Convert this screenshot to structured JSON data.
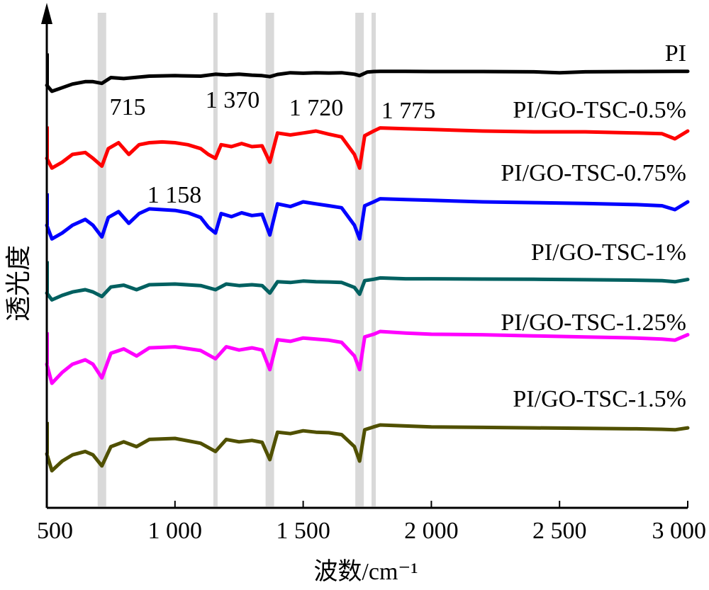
{
  "chart_data": {
    "type": "line",
    "title": "",
    "xlabel": "波数/cm⁻¹",
    "ylabel": "透光度",
    "xlim": [
      500,
      3000
    ],
    "x_ticks": [
      500,
      1000,
      1500,
      2000,
      2500,
      3000
    ],
    "x_tick_labels": [
      "500",
      "1 000",
      "1 500",
      "2 000",
      "2 500",
      "3 000"
    ],
    "y_ticks": [],
    "grid": false,
    "legend": "none",
    "marker_bands": [
      {
        "x": 715,
        "label": "715"
      },
      {
        "x": 1158,
        "label": "1 158"
      },
      {
        "x": 1370,
        "label": "1 370"
      },
      {
        "x": 1720,
        "label": "1 720"
      },
      {
        "x": 1775,
        "label": "1 775"
      }
    ],
    "series": [
      {
        "name": "PI",
        "color": "#000000",
        "x": [
          500,
          520,
          560,
          600,
          650,
          680,
          715,
          750,
          800,
          900,
          1000,
          1100,
          1158,
          1200,
          1250,
          1300,
          1340,
          1370,
          1400,
          1450,
          1500,
          1550,
          1600,
          1650,
          1700,
          1720,
          1750,
          1775,
          1800,
          1900,
          2000,
          2200,
          2400,
          2500,
          2600,
          2800,
          2950,
          3000
        ],
        "y": [
          0.4,
          0.15,
          0.3,
          0.45,
          0.55,
          0.55,
          0.48,
          0.72,
          0.68,
          0.78,
          0.8,
          0.78,
          0.86,
          0.83,
          0.86,
          0.82,
          0.8,
          0.76,
          0.85,
          0.92,
          0.9,
          0.92,
          0.91,
          0.92,
          0.86,
          0.8,
          0.95,
          0.97,
          0.98,
          0.98,
          0.97,
          0.97,
          0.96,
          0.92,
          0.96,
          0.97,
          0.98,
          0.98
        ]
      },
      {
        "name": "PI/GO-TSC-0.5%",
        "color": "#ff0000",
        "x": [
          500,
          520,
          560,
          600,
          650,
          680,
          715,
          740,
          780,
          820,
          860,
          900,
          950,
          1000,
          1050,
          1100,
          1130,
          1158,
          1180,
          1220,
          1260,
          1300,
          1340,
          1370,
          1400,
          1450,
          1500,
          1550,
          1600,
          1650,
          1700,
          1720,
          1740,
          1775,
          1800,
          1900,
          2000,
          2200,
          2400,
          2600,
          2800,
          2900,
          2950,
          3000
        ],
        "y": [
          0.3,
          0.05,
          0.2,
          0.4,
          0.45,
          0.3,
          0.1,
          0.55,
          0.7,
          0.4,
          0.65,
          0.7,
          0.72,
          0.7,
          0.65,
          0.55,
          0.4,
          0.3,
          0.65,
          0.6,
          0.68,
          0.6,
          0.62,
          0.2,
          0.95,
          0.9,
          0.95,
          1.0,
          0.92,
          0.85,
          0.4,
          0.05,
          0.88,
          1.0,
          1.08,
          1.06,
          1.04,
          1.0,
          0.98,
          0.98,
          0.95,
          0.93,
          0.8,
          1.0
        ]
      },
      {
        "name": "PI/GO-TSC-0.75%",
        "color": "#0000ff",
        "x": [
          500,
          520,
          560,
          600,
          650,
          680,
          715,
          740,
          780,
          820,
          860,
          900,
          950,
          1000,
          1050,
          1100,
          1130,
          1158,
          1180,
          1220,
          1260,
          1300,
          1340,
          1370,
          1400,
          1450,
          1500,
          1550,
          1600,
          1650,
          1700,
          1720,
          1740,
          1775,
          1800,
          1900,
          2000,
          2200,
          2400,
          2600,
          2800,
          2900,
          2950,
          3000
        ],
        "y": [
          0.4,
          0.05,
          0.2,
          0.4,
          0.55,
          0.4,
          0.1,
          0.6,
          0.75,
          0.45,
          0.7,
          0.82,
          0.8,
          0.78,
          0.72,
          0.6,
          0.35,
          0.2,
          0.7,
          0.62,
          0.72,
          0.65,
          0.68,
          0.15,
          0.95,
          0.88,
          1.0,
          0.95,
          0.9,
          0.85,
          0.4,
          0.05,
          0.9,
          1.0,
          1.08,
          1.06,
          1.04,
          1.0,
          0.98,
          0.96,
          0.93,
          0.9,
          0.8,
          1.0
        ]
      },
      {
        "name": "PI/GO-TSC-1%",
        "color": "#006060",
        "x": [
          500,
          520,
          560,
          600,
          650,
          680,
          715,
          750,
          800,
          850,
          900,
          1000,
          1100,
          1158,
          1200,
          1250,
          1300,
          1340,
          1370,
          1400,
          1450,
          1500,
          1550,
          1600,
          1650,
          1700,
          1720,
          1740,
          1775,
          1800,
          1900,
          2000,
          2200,
          2400,
          2600,
          2800,
          2900,
          2950,
          3000
        ],
        "y": [
          0.35,
          0.05,
          0.25,
          0.4,
          0.5,
          0.4,
          0.2,
          0.62,
          0.7,
          0.5,
          0.72,
          0.75,
          0.68,
          0.5,
          0.75,
          0.68,
          0.72,
          0.68,
          0.35,
          0.85,
          0.82,
          0.88,
          0.85,
          0.84,
          0.82,
          0.6,
          0.3,
          0.9,
          0.96,
          1.02,
          0.98,
          0.98,
          0.97,
          0.96,
          0.94,
          0.92,
          0.9,
          0.85,
          0.95
        ]
      },
      {
        "name": "PI/GO-TSC-1.25%",
        "color": "#ff00ff",
        "x": [
          500,
          520,
          560,
          600,
          650,
          680,
          715,
          750,
          800,
          850,
          900,
          1000,
          1100,
          1158,
          1200,
          1250,
          1300,
          1340,
          1370,
          1400,
          1450,
          1500,
          1550,
          1600,
          1650,
          1700,
          1720,
          1740,
          1775,
          1800,
          1900,
          2000,
          2200,
          2400,
          2600,
          2800,
          2900,
          2950,
          3000
        ],
        "y": [
          0.4,
          0.05,
          0.25,
          0.4,
          0.48,
          0.4,
          0.15,
          0.6,
          0.68,
          0.55,
          0.7,
          0.72,
          0.65,
          0.5,
          0.72,
          0.66,
          0.7,
          0.66,
          0.3,
          0.85,
          0.82,
          0.88,
          0.86,
          0.84,
          0.8,
          0.55,
          0.3,
          0.9,
          0.95,
          1.0,
          0.97,
          0.95,
          0.94,
          0.92,
          0.9,
          0.88,
          0.86,
          0.84,
          0.94
        ]
      },
      {
        "name": "PI/GO-TSC-1.5%",
        "color": "#505000",
        "x": [
          500,
          520,
          560,
          600,
          650,
          680,
          715,
          750,
          800,
          850,
          900,
          1000,
          1100,
          1158,
          1200,
          1250,
          1300,
          1340,
          1370,
          1400,
          1450,
          1500,
          1550,
          1600,
          1650,
          1700,
          1720,
          1740,
          1775,
          1800,
          1900,
          2000,
          2200,
          2400,
          2600,
          2800,
          2900,
          2950,
          3000
        ],
        "y": [
          0.4,
          0.05,
          0.25,
          0.38,
          0.45,
          0.38,
          0.15,
          0.55,
          0.65,
          0.55,
          0.7,
          0.72,
          0.62,
          0.45,
          0.7,
          0.65,
          0.68,
          0.64,
          0.28,
          0.85,
          0.82,
          0.88,
          0.85,
          0.84,
          0.8,
          0.55,
          0.25,
          0.9,
          0.96,
          1.0,
          0.98,
          0.96,
          0.95,
          0.94,
          0.93,
          0.92,
          0.91,
          0.9,
          0.94
        ]
      }
    ]
  }
}
